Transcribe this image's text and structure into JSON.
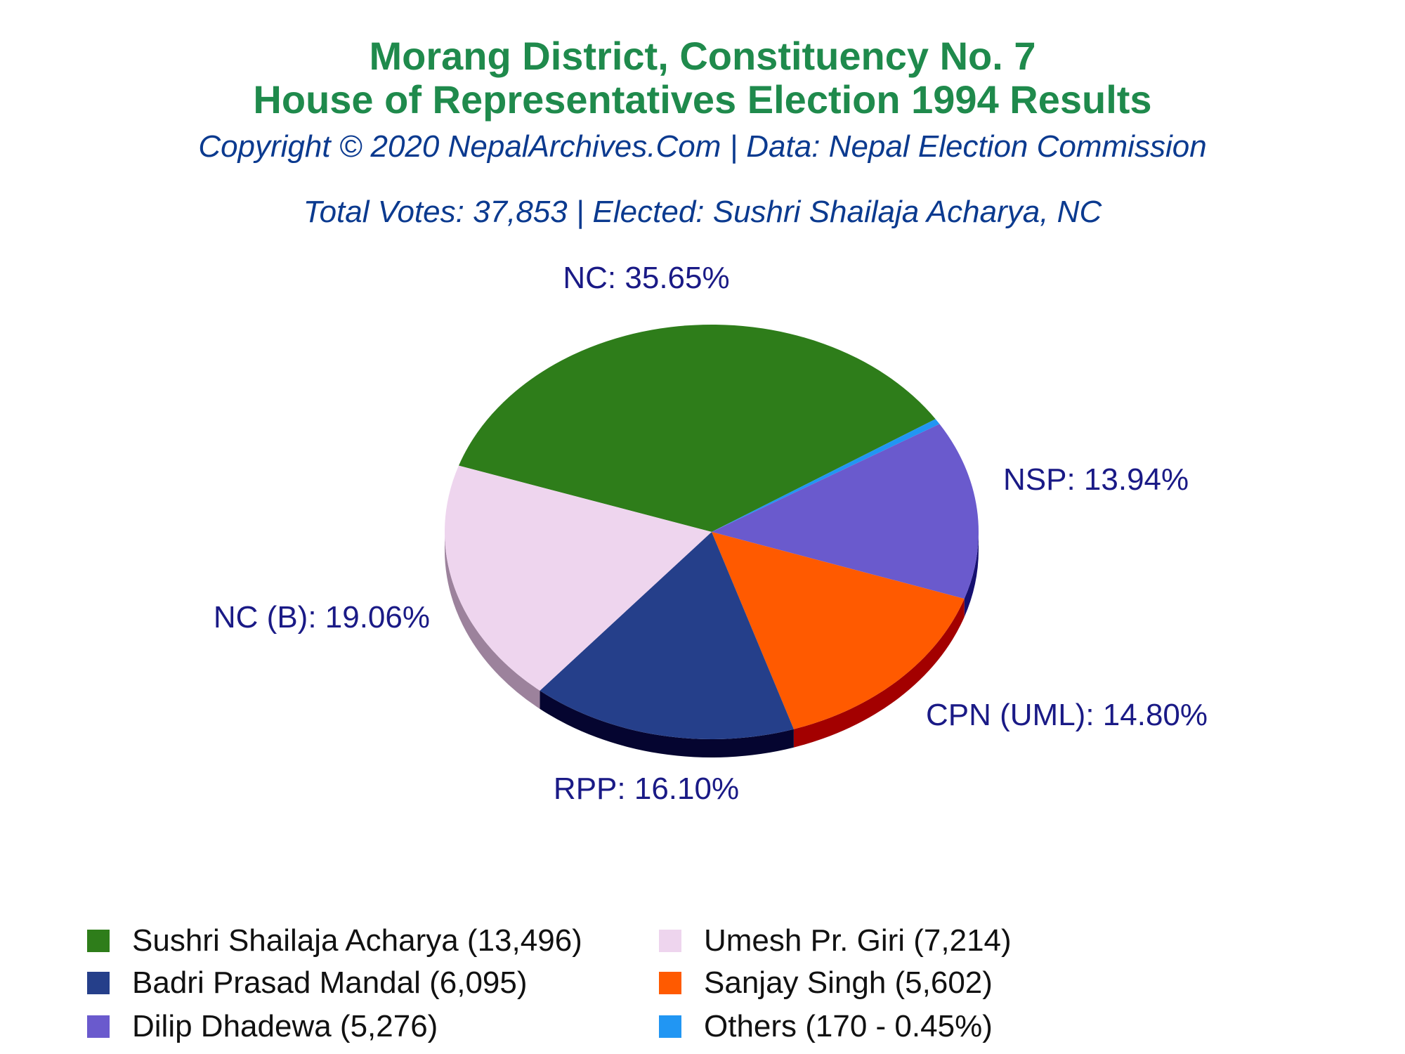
{
  "title_line1": "Morang District, Constituency No. 7",
  "title_line2": "House of Representatives Election 1994 Results",
  "copyright": "Copyright © 2020 NepalArchives.Com | Data: Nepal Election Commission",
  "summary": "Total Votes: 37,853 | Elected: Sushri Shailaja Acharya, NC",
  "chart_data": {
    "type": "pie",
    "style": "3d",
    "total_votes": 37853,
    "slices": [
      {
        "party": "NC",
        "label": "NC: 35.65%",
        "percent": 35.65,
        "votes": 13496,
        "color": "#2e7d1a",
        "side_color": "#1c4e10"
      },
      {
        "party": "Others",
        "label": "",
        "percent": 0.45,
        "votes": 170,
        "color": "#2196f3",
        "side_color": "#0d5aa0"
      },
      {
        "party": "NSP",
        "label": "NSP: 13.94%",
        "percent": 13.94,
        "votes": 5276,
        "color": "#6a5acd",
        "side_color": "#161070"
      },
      {
        "party": "CPN (UML)",
        "label": "CPN (UML): 14.80%",
        "percent": 14.8,
        "votes": 5602,
        "color": "#ff5a00",
        "side_color": "#a30000"
      },
      {
        "party": "RPP",
        "label": "RPP: 16.10%",
        "percent": 16.1,
        "votes": 6095,
        "color": "#253f8a",
        "side_color": "#050530"
      },
      {
        "party": "NC (B)",
        "label": "NC (B): 19.06%",
        "percent": 19.06,
        "votes": 7214,
        "color": "#eed5ee",
        "side_color": "#9c829c"
      }
    ],
    "legend": [
      {
        "text": "Sushri Shailaja Acharya (13,496)",
        "color": "#2e7d1a"
      },
      {
        "text": "Umesh Pr. Giri (7,214)",
        "color": "#eed5ee"
      },
      {
        "text": "Badri Prasad Mandal (6,095)",
        "color": "#253f8a"
      },
      {
        "text": "Sanjay Singh (5,602)",
        "color": "#ff5a00"
      },
      {
        "text": "Dilip Dhadewa (5,276)",
        "color": "#6a5acd"
      },
      {
        "text": "Others (170 - 0.45%)",
        "color": "#2196f3"
      }
    ]
  }
}
